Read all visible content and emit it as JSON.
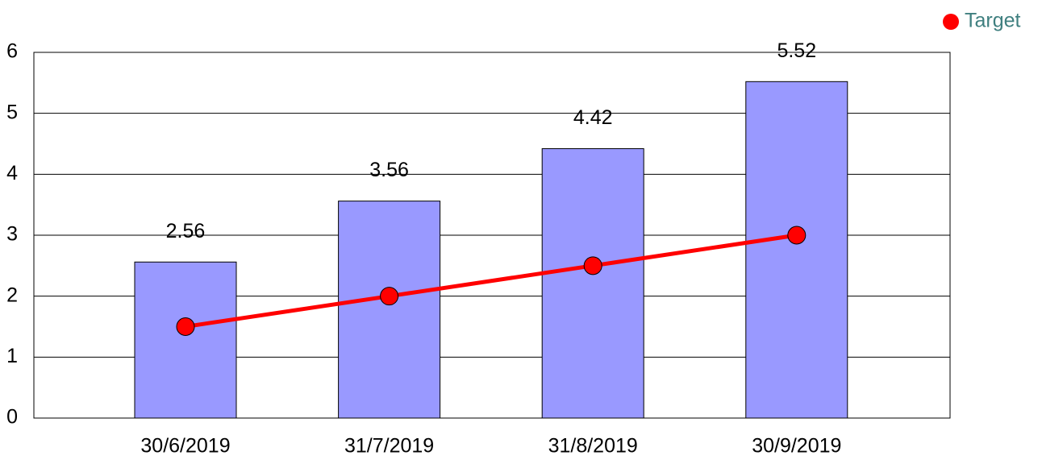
{
  "chart_data": {
    "type": "combo",
    "categories": [
      "30/6/2019",
      "31/7/2019",
      "31/8/2019",
      "30/9/2019"
    ],
    "series": [
      {
        "type": "bar",
        "color": "#9999ff",
        "values": [
          2.56,
          3.56,
          4.42,
          5.52
        ],
        "data_labels": true
      },
      {
        "type": "line",
        "name": "Target",
        "color": "#ff0000",
        "values": [
          1.5,
          2,
          2.5,
          3
        ]
      }
    ],
    "ylim": [
      0,
      6
    ],
    "yticks": [
      0,
      1,
      2,
      3,
      4,
      5,
      6
    ],
    "grid": true,
    "legend": "top-right"
  }
}
